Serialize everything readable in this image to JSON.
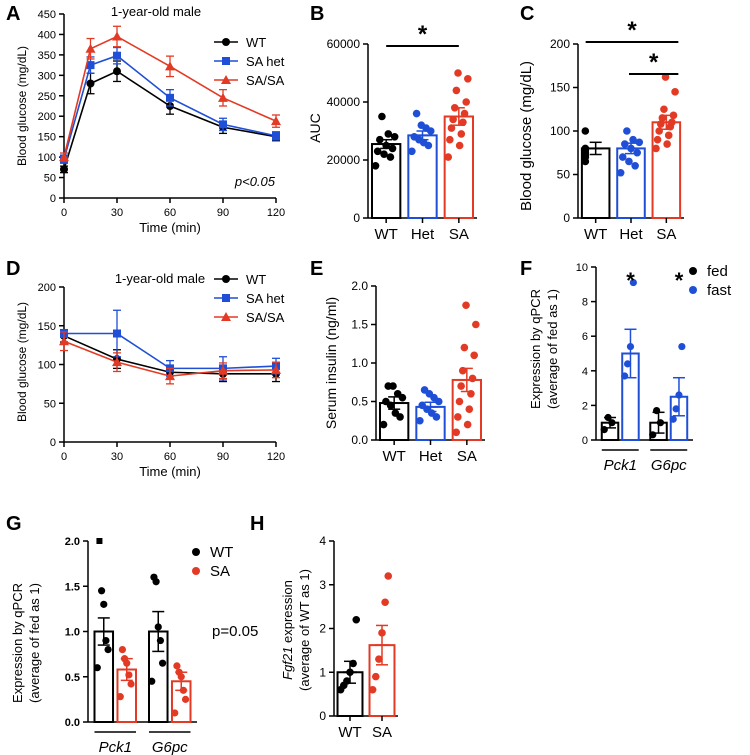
{
  "colors": {
    "wt": "#000000",
    "het": "#1f4fd6",
    "sa": "#e23a24",
    "fed": "#000000",
    "fast": "#1f4fd6"
  },
  "panels": {
    "A": {
      "letter": "A",
      "title": "1-year-old male",
      "ylabel": "Blood glucose (mg/dL)",
      "xlabel": "Time (min)",
      "annotation": "p<0.05"
    },
    "B": {
      "letter": "B",
      "ylabel": "AUC",
      "star": "*"
    },
    "C": {
      "letter": "C",
      "ylabel": "Blood glucose (mg/dL)",
      "star": "*"
    },
    "D": {
      "letter": "D",
      "title": "1-year-old male",
      "ylabel": "Blood glucose (mg/dL)",
      "xlabel": "Time (min)"
    },
    "E": {
      "letter": "E",
      "ylabel": "Serum insulin (ng/ml)"
    },
    "F": {
      "letter": "F",
      "ylabel1": "Expression by qPCR",
      "ylabel2": "(average of fed as 1)",
      "star": "*"
    },
    "G": {
      "letter": "G",
      "ylabel1": "Expression by qPCR",
      "ylabel2": "(average of fed as 1)",
      "annotation": "p=0.05"
    },
    "H": {
      "letter": "H",
      "ylabel1_italic": "Fgf21",
      "ylabel1_rest": " expression",
      "ylabel2": "(average of WT as 1)"
    }
  },
  "chart_data": [
    {
      "id": "A",
      "type": "line",
      "title": "1-year-old male",
      "xlabel": "Time (min)",
      "ylabel": "Blood glucose (mg/dL)",
      "x": [
        0,
        15,
        30,
        60,
        90,
        120
      ],
      "xticks": [
        0,
        30,
        60,
        90,
        120
      ],
      "xlim": [
        0,
        120
      ],
      "yticks": [
        0,
        50,
        100,
        150,
        200,
        250,
        300,
        350,
        400,
        450
      ],
      "ylim": [
        0,
        450
      ],
      "series": [
        {
          "name": "WT",
          "marker": "circle",
          "values": [
            70,
            280,
            310,
            225,
            173,
            150
          ],
          "errors": [
            8,
            25,
            25,
            20,
            15,
            10
          ]
        },
        {
          "name": "SA het",
          "marker": "square",
          "values": [
            95,
            325,
            348,
            245,
            180,
            152
          ],
          "errors": [
            10,
            20,
            20,
            20,
            15,
            10
          ]
        },
        {
          "name": "SA/SA",
          "marker": "triangle",
          "values": [
            100,
            365,
            395,
            322,
            245,
            188
          ],
          "errors": [
            10,
            25,
            25,
            25,
            20,
            15
          ]
        }
      ],
      "legend_position": "top-right",
      "annotation": "p<0.05"
    },
    {
      "id": "B",
      "type": "bar",
      "ylabel": "AUC",
      "categories": [
        "WT",
        "Het",
        "SA"
      ],
      "values": [
        25500,
        28500,
        35000
      ],
      "errors": [
        1500,
        1500,
        3000
      ],
      "yticks": [
        0,
        20000,
        40000,
        60000
      ],
      "ylim": [
        0,
        60000
      ],
      "points": [
        [
          18000,
          21000,
          22000,
          23000,
          24000,
          25000,
          27000,
          28000,
          29000,
          35000
        ],
        [
          23000,
          25000,
          26000,
          27000,
          28000,
          30000,
          31000,
          32000,
          36000
        ],
        [
          21000,
          25000,
          27000,
          29000,
          31000,
          33000,
          34000,
          36000,
          38000,
          40000,
          44000,
          48000,
          50000
        ]
      ],
      "significance": [
        {
          "from": 0,
          "to": 2,
          "label": "*"
        }
      ]
    },
    {
      "id": "C",
      "type": "bar",
      "ylabel": "Blood glucose (mg/dL)",
      "categories": [
        "WT",
        "Het",
        "SA"
      ],
      "values": [
        80,
        80,
        110
      ],
      "errors": [
        7,
        6,
        8
      ],
      "yticks": [
        0,
        50,
        100,
        150,
        200
      ],
      "ylim": [
        0,
        200
      ],
      "points": [
        [
          65,
          70,
          72,
          75,
          78,
          80,
          100
        ],
        [
          52,
          60,
          65,
          70,
          75,
          80,
          85,
          87,
          90,
          100
        ],
        [
          80,
          85,
          90,
          95,
          100,
          105,
          108,
          110,
          115,
          118,
          125,
          145,
          162
        ]
      ],
      "significance": [
        {
          "from": 0,
          "to": 2,
          "label": "*"
        },
        {
          "from": 1,
          "to": 2,
          "label": "*"
        }
      ]
    },
    {
      "id": "D",
      "type": "line",
      "title": "1-year-old male",
      "xlabel": "Time (min)",
      "ylabel": "Blood glucose (mg/dL)",
      "x": [
        0,
        30,
        60,
        90,
        120
      ],
      "xticks": [
        0,
        30,
        60,
        90,
        120
      ],
      "xlim": [
        0,
        120
      ],
      "yticks": [
        0,
        50,
        100,
        150,
        200
      ],
      "ylim": [
        0,
        200
      ],
      "series": [
        {
          "name": "WT",
          "marker": "circle",
          "values": [
            137,
            107,
            90,
            88,
            88
          ],
          "errors": [
            8,
            12,
            8,
            10,
            10
          ]
        },
        {
          "name": "SA het",
          "marker": "square",
          "values": [
            140,
            140,
            95,
            95,
            98
          ],
          "errors": [
            5,
            30,
            10,
            15,
            10
          ]
        },
        {
          "name": "SA/SA",
          "marker": "triangle",
          "values": [
            130,
            103,
            85,
            92,
            93
          ],
          "errors": [
            12,
            12,
            10,
            10,
            10
          ]
        }
      ],
      "legend_position": "top-right"
    },
    {
      "id": "E",
      "type": "bar",
      "ylabel": "Serum insulin (ng/ml)",
      "categories": [
        "WT",
        "Het",
        "SA"
      ],
      "values": [
        0.48,
        0.43,
        0.78
      ],
      "errors": [
        0.08,
        0.06,
        0.15
      ],
      "yticks": [
        0.0,
        0.5,
        1.0,
        1.5,
        2.0
      ],
      "ylim": [
        0,
        2.0
      ],
      "points": [
        [
          0.2,
          0.3,
          0.35,
          0.45,
          0.5,
          0.55,
          0.6,
          0.7,
          0.7
        ],
        [
          0.25,
          0.3,
          0.35,
          0.4,
          0.45,
          0.5,
          0.55,
          0.6,
          0.65
        ],
        [
          0.1,
          0.2,
          0.3,
          0.4,
          0.5,
          0.6,
          0.7,
          0.8,
          0.9,
          1.1,
          1.2,
          1.5,
          1.75
        ]
      ]
    },
    {
      "id": "F",
      "type": "bar",
      "ylabel": "Expression by qPCR (average of fed as 1)",
      "groups": [
        "Pck1",
        "G6pc"
      ],
      "series_names": [
        "fed",
        "fast"
      ],
      "values": [
        [
          1.0,
          5.0
        ],
        [
          1.0,
          2.5
        ]
      ],
      "errors": [
        [
          0.3,
          1.4
        ],
        [
          0.6,
          1.1
        ]
      ],
      "yticks": [
        0,
        2,
        4,
        6,
        8,
        10
      ],
      "ylim": [
        0,
        10
      ],
      "points": [
        [
          [
            0.6,
            1.0,
            1.3
          ],
          [
            3.7,
            4.4,
            5.4,
            9.1
          ]
        ],
        [
          [
            0.3,
            1.0,
            1.7
          ],
          [
            1.2,
            1.8,
            2.6,
            5.4
          ]
        ]
      ],
      "significance": [
        "*",
        "*"
      ],
      "legend_position": "top-right"
    },
    {
      "id": "G",
      "type": "bar",
      "ylabel": "Expression by qPCR (average of fed as 1)",
      "groups": [
        "Pck1",
        "G6pc"
      ],
      "series_names": [
        "WT",
        "SA"
      ],
      "values": [
        [
          1.0,
          0.58
        ],
        [
          1.0,
          0.45
        ]
      ],
      "errors": [
        [
          0.15,
          0.12
        ],
        [
          0.22,
          0.1
        ]
      ],
      "yticks": [
        0.0,
        0.5,
        1.0,
        1.5,
        2.0
      ],
      "ylim": [
        0,
        2.0
      ],
      "points": [
        [
          [
            0.6,
            0.8,
            0.9,
            1.3,
            1.45,
            2.0
          ],
          [
            0.28,
            0.42,
            0.52,
            0.65,
            0.7,
            0.8
          ]
        ],
        [
          [
            0.45,
            0.65,
            0.9,
            1.05,
            1.55,
            1.6
          ],
          [
            0.1,
            0.25,
            0.35,
            0.5,
            0.55,
            0.62
          ]
        ]
      ],
      "annotation": "p=0.05",
      "legend_position": "top-right"
    },
    {
      "id": "H",
      "type": "bar",
      "ylabel": "Fgf21 expression (average of WT as 1)",
      "categories": [
        "WT",
        "SA"
      ],
      "values": [
        1.0,
        1.62
      ],
      "errors": [
        0.25,
        0.45
      ],
      "yticks": [
        0,
        1,
        2,
        3,
        4
      ],
      "ylim": [
        0,
        4
      ],
      "points": [
        [
          0.6,
          0.7,
          0.8,
          1.0,
          1.2,
          2.2
        ],
        [
          0.6,
          0.9,
          1.3,
          1.9,
          2.6,
          3.2
        ]
      ]
    }
  ]
}
